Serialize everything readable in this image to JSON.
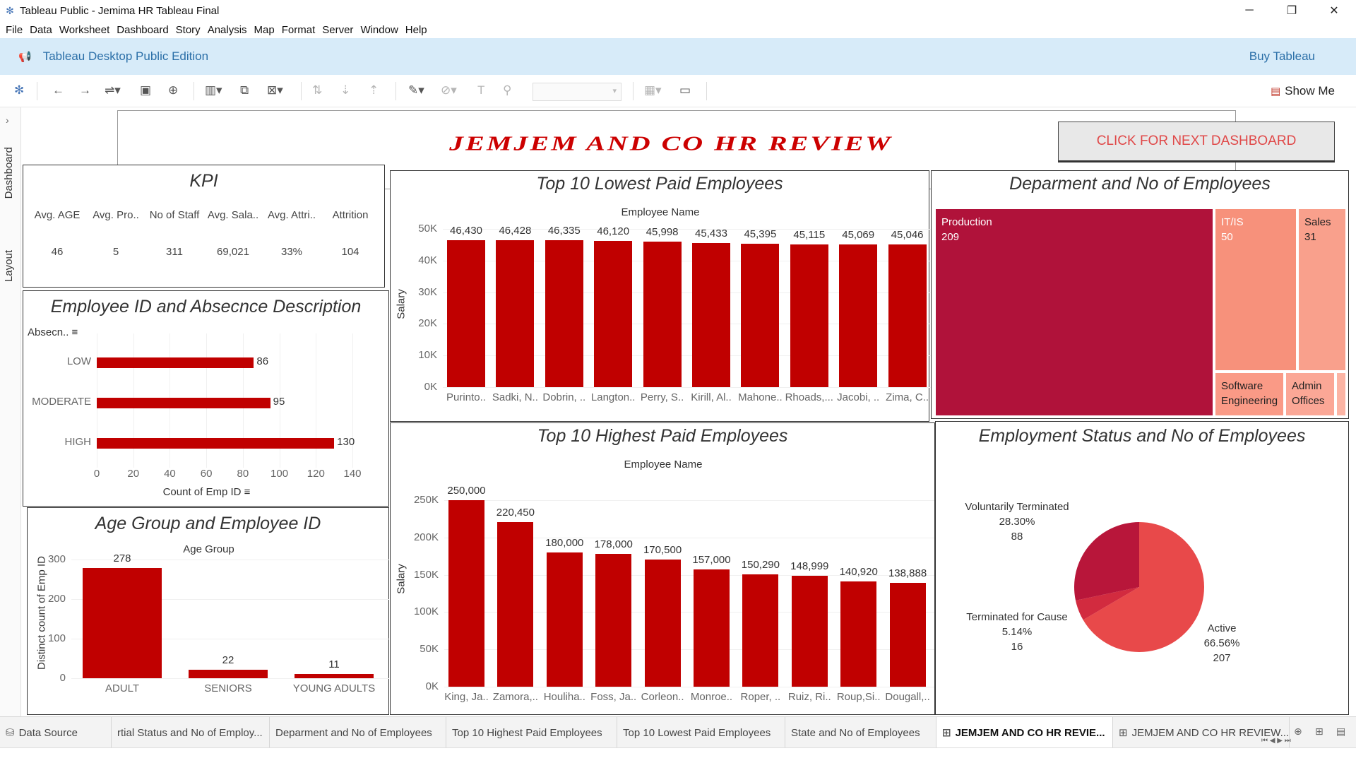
{
  "window": {
    "title": "Tableau Public - Jemima HR Tableau Final",
    "controls": [
      "minimize-icon",
      "restore-icon",
      "close-icon"
    ]
  },
  "menu": [
    "File",
    "Data",
    "Worksheet",
    "Dashboard",
    "Story",
    "Analysis",
    "Map",
    "Format",
    "Server",
    "Window",
    "Help"
  ],
  "edition_bar": {
    "edition": "Tableau Desktop Public Edition",
    "buy": "Buy Tableau"
  },
  "toolbar": {
    "show_me": "Show Me"
  },
  "side_tabs": {
    "dashboard": "Dashboard",
    "layout": "Layout"
  },
  "dashboard": {
    "title": "JEMJEM AND CO HR REVIEW",
    "next_button": "CLICK FOR NEXT DASHBOARD",
    "colors": {
      "bar": "#c00000",
      "title": "#cc0000",
      "button_text": "#e04848"
    }
  },
  "kpi": {
    "title": "KPI",
    "headers": [
      "Avg. AGE",
      "Avg. Pro..",
      "No of Staff",
      "Avg. Sala..",
      "Avg. Attri..",
      "Attrition"
    ],
    "values": [
      "46",
      "5",
      "311",
      "69,021",
      "33%",
      "104"
    ]
  },
  "absence": {
    "title": "Employee ID and Absecnce Description",
    "dim_label": "Absecn..",
    "x_title": "Count of Emp ID",
    "sort_icon": "sort-icon"
  },
  "lowest": {
    "title": "Top 10 Lowest Paid Employees",
    "x_title": "Employee Name",
    "y_title": "Salary"
  },
  "highest": {
    "title": "Top 10 Highest Paid Employees",
    "x_title": "Employee Name",
    "y_title": "Salary"
  },
  "age": {
    "title": "Age Group and Employee ID",
    "x_title": "Age Group",
    "y_title": "Distinct count of Emp ID"
  },
  "department": {
    "title": "Deparment and No of Employees",
    "cells": [
      {
        "name": "Production",
        "value": "209",
        "color": "#b0123a",
        "text": "#ffffff"
      },
      {
        "name": "IT/IS",
        "value": "50",
        "color": "#f7917b",
        "text": "#ffffff"
      },
      {
        "name": "Sales",
        "value": "31",
        "color": "#f9a08c",
        "text": "#222222"
      },
      {
        "name": "Software\nEngineering",
        "value": "",
        "color": "#fa9a86",
        "text": "#222222"
      },
      {
        "name": "Admin\nOffices",
        "value": "",
        "color": "#fba796",
        "text": "#222222"
      },
      {
        "name": "",
        "value": "",
        "color": "#fcb4a4",
        "text": "#222222"
      }
    ]
  },
  "employment": {
    "title": "Employment Status and No of Employees",
    "labels": [
      {
        "name": "Voluntarily Terminated",
        "pct": "28.30%",
        "count": "88"
      },
      {
        "name": "Terminated for Cause",
        "pct": "5.14%",
        "count": "16"
      },
      {
        "name": "Active",
        "pct": "66.56%",
        "count": "207"
      }
    ]
  },
  "tabs": [
    "Data Source",
    "rtial Status and No of Employ...",
    "Deparment and No of Employees",
    "Top 10 Highest Paid Employees",
    "Top 10 Lowest Paid Employees",
    "State and No of Employees",
    "JEMJEM AND CO HR REVIE...",
    "JEMJEM AND CO HR REVIEW..."
  ],
  "chart_data": [
    {
      "type": "bar",
      "title": "Employee ID and Absecnce Description",
      "orientation": "horizontal",
      "categories": [
        "LOW",
        "MODERATE",
        "HIGH"
      ],
      "values": [
        86,
        95,
        130
      ],
      "xlabel": "Count of Emp ID",
      "ylabel": "Absecn..",
      "xlim": [
        0,
        140
      ],
      "xticks": [
        0,
        20,
        40,
        60,
        80,
        100,
        120,
        140
      ]
    },
    {
      "type": "bar",
      "title": "Top 10 Lowest Paid Employees",
      "categories": [
        "Purinto..",
        "Sadki, N..",
        "Dobrin, ..",
        "Langton..",
        "Perry, S..",
        "Kirill, Al..",
        "Mahone..",
        "Rhoads,...",
        "Jacobi, ..",
        "Zima, C.."
      ],
      "values": [
        46430,
        46428,
        46335,
        46120,
        45998,
        45433,
        45395,
        45115,
        45069,
        45046
      ],
      "value_labels": [
        "46,430",
        "46,428",
        "46,335",
        "46,120",
        "45,998",
        "45,433",
        "45,395",
        "45,115",
        "45,069",
        "45,046"
      ],
      "xlabel": "Employee Name",
      "ylabel": "Salary",
      "ylim": [
        0,
        50000
      ],
      "yticks": [
        "0K",
        "10K",
        "20K",
        "30K",
        "40K",
        "50K"
      ]
    },
    {
      "type": "bar",
      "title": "Top 10 Highest Paid Employees",
      "categories": [
        "King, Ja..",
        "Zamora,..",
        "Houliha..",
        "Foss, Ja..",
        "Corleon..",
        "Monroe..",
        "Roper, ..",
        "Ruiz, Ri..",
        "Roup,Si..",
        "Dougall,.."
      ],
      "values": [
        250000,
        220450,
        180000,
        178000,
        170500,
        157000,
        150290,
        148999,
        140920,
        138888
      ],
      "value_labels": [
        "250,000",
        "220,450",
        "180,000",
        "178,000",
        "170,500",
        "157,000",
        "150,290",
        "148,999",
        "140,920",
        "138,888"
      ],
      "xlabel": "Employee Name",
      "ylabel": "Salary",
      "ylim": [
        0,
        250000
      ],
      "yticks": [
        "0K",
        "50K",
        "100K",
        "150K",
        "200K",
        "250K"
      ]
    },
    {
      "type": "bar",
      "title": "Age Group and Employee ID",
      "categories": [
        "ADULT",
        "SENIORS",
        "YOUNG ADULTS"
      ],
      "values": [
        278,
        22,
        11
      ],
      "xlabel": "Age Group",
      "ylabel": "Distinct count of Emp ID",
      "ylim": [
        0,
        300
      ],
      "yticks": [
        0,
        100,
        200,
        300
      ]
    },
    {
      "type": "pie",
      "title": "Employment Status and No of Employees",
      "categories": [
        "Active",
        "Terminated for Cause",
        "Voluntarily Terminated"
      ],
      "values": [
        207,
        16,
        88
      ],
      "percentages": [
        66.56,
        5.14,
        28.3
      ],
      "colors": [
        "#e8494a",
        "#d22b3f",
        "#b8163a"
      ]
    }
  ]
}
